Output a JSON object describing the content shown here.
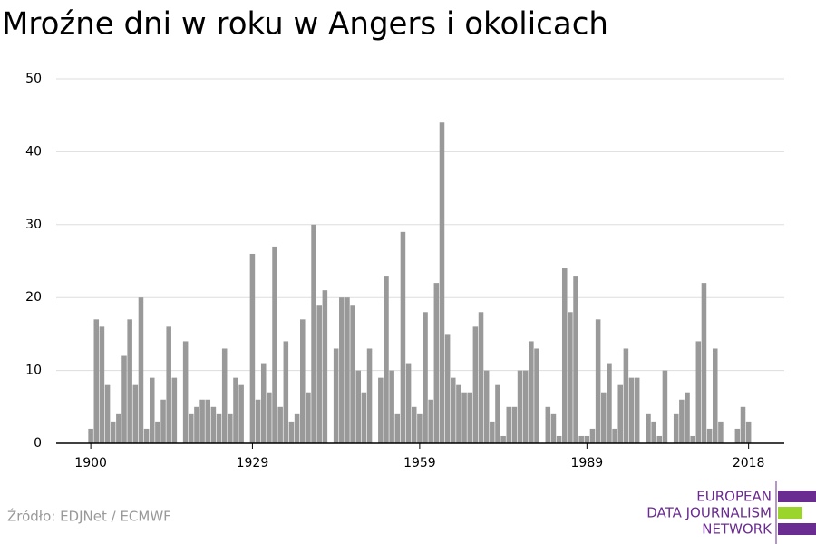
{
  "chart_data": {
    "type": "bar",
    "title": "Mroźne dni w roku w Angers i okolicach",
    "x": [
      1900,
      1901,
      1902,
      1903,
      1904,
      1905,
      1906,
      1907,
      1908,
      1909,
      1910,
      1911,
      1912,
      1913,
      1914,
      1915,
      1916,
      1917,
      1918,
      1919,
      1920,
      1921,
      1922,
      1923,
      1924,
      1925,
      1926,
      1927,
      1928,
      1929,
      1930,
      1931,
      1932,
      1933,
      1934,
      1935,
      1936,
      1937,
      1938,
      1939,
      1940,
      1941,
      1942,
      1943,
      1944,
      1945,
      1946,
      1947,
      1948,
      1949,
      1950,
      1951,
      1952,
      1953,
      1954,
      1955,
      1956,
      1957,
      1958,
      1959,
      1960,
      1961,
      1962,
      1963,
      1964,
      1965,
      1966,
      1967,
      1968,
      1969,
      1970,
      1971,
      1972,
      1973,
      1974,
      1975,
      1976,
      1977,
      1978,
      1979,
      1980,
      1981,
      1982,
      1983,
      1984,
      1985,
      1986,
      1987,
      1988,
      1989,
      1990,
      1991,
      1992,
      1993,
      1994,
      1995,
      1996,
      1997,
      1998,
      1999,
      2000,
      2001,
      2002,
      2003,
      2004,
      2005,
      2006,
      2007,
      2008,
      2009,
      2010,
      2011,
      2012,
      2013,
      2014,
      2015,
      2016,
      2017,
      2018
    ],
    "values": [
      2,
      17,
      16,
      8,
      3,
      4,
      12,
      17,
      8,
      20,
      2,
      9,
      3,
      6,
      16,
      9,
      0,
      14,
      4,
      5,
      6,
      6,
      5,
      4,
      13,
      4,
      9,
      8,
      0,
      26,
      6,
      11,
      7,
      27,
      5,
      14,
      3,
      4,
      17,
      7,
      30,
      19,
      21,
      0,
      13,
      20,
      20,
      19,
      10,
      7,
      13,
      0,
      9,
      23,
      10,
      4,
      29,
      11,
      5,
      4,
      18,
      6,
      22,
      44,
      15,
      9,
      8,
      7,
      7,
      16,
      18,
      10,
      3,
      8,
      1,
      5,
      5,
      10,
      10,
      14,
      13,
      0,
      5,
      4,
      1,
      24,
      18,
      23,
      1,
      1,
      2,
      17,
      7,
      11,
      2,
      8,
      13,
      9,
      9,
      0,
      4,
      3,
      1,
      10,
      0,
      4,
      6,
      7,
      1,
      14,
      22,
      2,
      13,
      3,
      0,
      0,
      2,
      5,
      3
    ],
    "color": "#999999",
    "xlim": [
      1893.8,
      2024.4
    ],
    "xticks": [
      1900,
      1929,
      1959,
      1989,
      2018
    ],
    "ylim": [
      0,
      50
    ],
    "yticks": [
      0,
      10,
      20,
      30,
      40,
      50
    ],
    "grid": true,
    "source": "Źródło: EDJNet / ECMWF",
    "logo": [
      "EUROPEAN",
      "DATA JOURNALISM",
      "NETWORK"
    ]
  }
}
